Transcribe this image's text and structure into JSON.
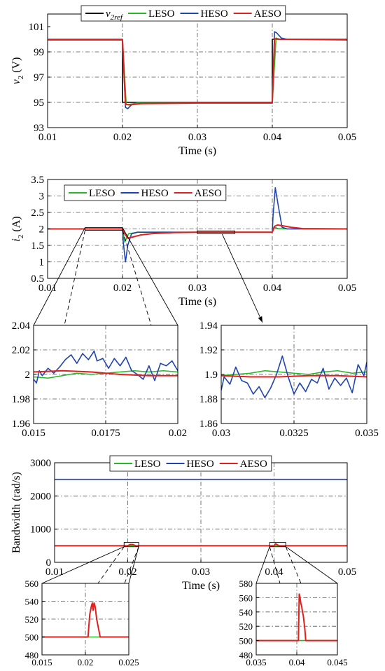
{
  "colors": {
    "ref": "#000000",
    "LESO": "#22b922",
    "HESO": "#2145b0",
    "AESO": "#e0201f"
  },
  "chart_data": [
    {
      "id": "voltage",
      "type": "line",
      "xlabel": "Time (s)",
      "ylabel_main": "v",
      "ylabel_sub": "2",
      "ylabel_unit": " (V)",
      "xlim": [
        0.01,
        0.05
      ],
      "ylim": [
        93,
        102
      ],
      "xticks": [
        "0.01",
        "0.02",
        "0.03",
        "0.04",
        "0.05"
      ],
      "xtick_values": [
        0.01,
        0.02,
        0.03,
        0.04,
        0.05
      ],
      "yticks": [
        "93",
        "95",
        "97",
        "99",
        "101"
      ],
      "ytick_values": [
        93,
        95,
        97,
        99,
        101
      ],
      "legend": {
        "position": "top",
        "entries": [
          {
            "key": "ref",
            "main": "v",
            "sub": "2ref"
          },
          {
            "key": "LESO",
            "label": "LESO"
          },
          {
            "key": "HESO",
            "label": "HESO"
          },
          {
            "key": "AESO",
            "label": "AESO"
          }
        ]
      },
      "series": [
        {
          "name": "v2ref",
          "key": "ref",
          "x": [
            0.01,
            0.02,
            0.02,
            0.04,
            0.04,
            0.05
          ],
          "y": [
            100,
            100,
            95,
            95,
            100,
            100
          ]
        },
        {
          "name": "HESO",
          "key": "HESO",
          "x": [
            0.01,
            0.0199,
            0.02,
            0.0204,
            0.0207,
            0.0212,
            0.022,
            0.03,
            0.0399,
            0.04,
            0.0403,
            0.0406,
            0.0412,
            0.042,
            0.05
          ],
          "y": [
            100,
            100,
            99.9,
            94.6,
            94.5,
            94.8,
            95,
            95,
            95,
            95.1,
            100.6,
            100.5,
            100.1,
            100,
            100
          ]
        },
        {
          "name": "LESO",
          "key": "LESO",
          "x": [
            0.01,
            0.02,
            0.0205,
            0.021,
            0.022,
            0.04,
            0.0405,
            0.041,
            0.05
          ],
          "y": [
            100,
            100,
            94.8,
            94.85,
            94.95,
            94.95,
            100.1,
            100,
            100
          ]
        },
        {
          "name": "AESO",
          "key": "AESO",
          "x": [
            0.01,
            0.02,
            0.0204,
            0.021,
            0.0225,
            0.03,
            0.04,
            0.0403,
            0.041,
            0.0425,
            0.05
          ],
          "y": [
            99.95,
            99.95,
            94.85,
            94.8,
            94.9,
            94.95,
            94.95,
            100.05,
            100.0,
            100.0,
            99.95
          ]
        }
      ]
    },
    {
      "id": "current",
      "type": "line",
      "xlabel": "Time (s)",
      "ylabel_main": "i",
      "ylabel_sub": "2",
      "ylabel_unit": " (A)",
      "xlim": [
        0.01,
        0.05
      ],
      "ylim": [
        0.5,
        3.5
      ],
      "xticks": [
        "0.01",
        "0.02",
        "0.03",
        "0.04",
        "0.05"
      ],
      "xtick_values": [
        0.01,
        0.02,
        0.03,
        0.04,
        0.05
      ],
      "yticks": [
        "0.5",
        "1",
        "1.5",
        "2",
        "2.5",
        "3",
        "3.5"
      ],
      "ytick_values": [
        0.5,
        1,
        1.5,
        2,
        2.5,
        3,
        3.5
      ],
      "legend": {
        "position": "top-left",
        "entries": [
          {
            "key": "LESO",
            "label": "LESO"
          },
          {
            "key": "HESO",
            "label": "HESO"
          },
          {
            "key": "AESO",
            "label": "AESO"
          }
        ]
      },
      "series": [
        {
          "name": "LESO",
          "key": "LESO",
          "x": [
            0.01,
            0.02,
            0.0203,
            0.0208,
            0.022,
            0.025,
            0.04,
            0.0402,
            0.0408,
            0.042,
            0.05
          ],
          "y": [
            2.0,
            2.0,
            1.6,
            1.85,
            1.9,
            1.9,
            1.9,
            2.05,
            2.01,
            2.0,
            2.0
          ]
        },
        {
          "name": "HESO",
          "key": "HESO",
          "x": [
            0.01,
            0.02,
            0.0201,
            0.0204,
            0.0207,
            0.0212,
            0.022,
            0.03,
            0.04,
            0.0401,
            0.0404,
            0.0408,
            0.0413,
            0.042,
            0.05
          ],
          "y": [
            2.0,
            2.0,
            1.6,
            1.0,
            1.5,
            1.85,
            1.9,
            1.9,
            1.9,
            2.4,
            3.25,
            2.7,
            2.05,
            2.0,
            2.0
          ]
        },
        {
          "name": "AESO",
          "key": "AESO",
          "x": [
            0.01,
            0.02,
            0.0203,
            0.0207,
            0.0213,
            0.0225,
            0.024,
            0.027,
            0.03,
            0.04,
            0.0403,
            0.0407,
            0.0415,
            0.0425,
            0.044,
            0.05
          ],
          "y": [
            2.0,
            2.0,
            1.85,
            1.72,
            1.75,
            1.82,
            1.86,
            1.89,
            1.9,
            1.9,
            2.08,
            2.12,
            2.09,
            2.05,
            2.01,
            2.0
          ]
        }
      ]
    },
    {
      "id": "current-zoom-1",
      "type": "line",
      "xlim": [
        0.015,
        0.02
      ],
      "ylim": [
        1.96,
        2.04
      ],
      "xticks": [
        "0.015",
        "0.0175",
        "0.02"
      ],
      "xtick_values": [
        0.015,
        0.0175,
        0.02
      ],
      "yticks": [
        "1.96",
        "1.98",
        "2",
        "2.02",
        "2.04"
      ],
      "ytick_values": [
        1.96,
        1.98,
        2.0,
        2.02,
        2.04
      ],
      "series": [
        {
          "name": "LESO",
          "key": "LESO",
          "x": [
            0.015,
            0.0155,
            0.016,
            0.0165,
            0.017,
            0.0175,
            0.018,
            0.0185,
            0.019,
            0.0195,
            0.02
          ],
          "y": [
            1.998,
            1.997,
            1.999,
            2.001,
            2.0,
            2.001,
            2.002,
            2.003,
            2.002,
            2.003,
            2.002
          ]
        },
        {
          "name": "HESO",
          "key": "HESO",
          "x": [
            0.015,
            0.0151,
            0.0152,
            0.0153,
            0.0155,
            0.0157,
            0.0159,
            0.0161,
            0.0163,
            0.0165,
            0.0167,
            0.0169,
            0.0171,
            0.0172,
            0.0174,
            0.0176,
            0.0178,
            0.018,
            0.0182,
            0.0184,
            0.0186,
            0.0188,
            0.019,
            0.0192,
            0.0194,
            0.0196,
            0.0198,
            0.02
          ],
          "y": [
            1.996,
            1.993,
            2.003,
            1.999,
            2.005,
            2.001,
            2.006,
            2.012,
            2.016,
            2.009,
            2.017,
            2.012,
            2.019,
            2.011,
            2.013,
            2.005,
            2.013,
            2.007,
            2.014,
            2.003,
            2.0,
            1.996,
            2.007,
            1.995,
            2.009,
            2.007,
            2.011,
            2.003
          ]
        },
        {
          "name": "AESO",
          "key": "AESO",
          "x": [
            0.015,
            0.016,
            0.017,
            0.0175,
            0.018,
            0.019,
            0.02
          ],
          "y": [
            2.002,
            2.003,
            2.002,
            2.001,
            2.0,
            1.999,
            1.999
          ]
        }
      ]
    },
    {
      "id": "current-zoom-2",
      "type": "line",
      "xlim": [
        0.03,
        0.035
      ],
      "ylim": [
        1.86,
        1.94
      ],
      "xticks": [
        "0.03",
        "0.0325",
        "0.035"
      ],
      "xtick_values": [
        0.03,
        0.0325,
        0.035
      ],
      "yticks": [
        "1.86",
        "1.88",
        "1.9",
        "1.92",
        "1.94"
      ],
      "ytick_values": [
        1.86,
        1.88,
        1.9,
        1.92,
        1.94
      ],
      "series": [
        {
          "name": "LESO",
          "key": "LESO",
          "x": [
            0.03,
            0.0305,
            0.031,
            0.0315,
            0.032,
            0.0325,
            0.033,
            0.0335,
            0.034,
            0.0345,
            0.035
          ],
          "y": [
            1.899,
            1.9,
            1.901,
            1.903,
            1.902,
            1.901,
            1.9,
            1.902,
            1.903,
            1.901,
            1.902
          ]
        },
        {
          "name": "HESO",
          "key": "HESO",
          "x": [
            0.03,
            0.0301,
            0.0303,
            0.0305,
            0.0307,
            0.0309,
            0.0311,
            0.0313,
            0.0315,
            0.0317,
            0.0319,
            0.0321,
            0.0323,
            0.0325,
            0.0327,
            0.0329,
            0.0331,
            0.0333,
            0.0335,
            0.0337,
            0.0339,
            0.0341,
            0.0343,
            0.0345,
            0.0347,
            0.0349,
            0.035
          ],
          "y": [
            1.887,
            1.898,
            1.892,
            1.906,
            1.895,
            1.893,
            1.884,
            1.89,
            1.881,
            1.889,
            1.9,
            1.915,
            1.898,
            1.884,
            1.893,
            1.886,
            1.896,
            1.893,
            1.905,
            1.888,
            1.897,
            1.891,
            1.897,
            1.885,
            1.908,
            1.899,
            1.91
          ]
        },
        {
          "name": "AESO",
          "key": "AESO",
          "x": [
            0.03,
            0.031,
            0.032,
            0.033,
            0.034,
            0.035
          ],
          "y": [
            1.899,
            1.898,
            1.898,
            1.899,
            1.899,
            1.898
          ]
        }
      ]
    },
    {
      "id": "bandwidth",
      "type": "line",
      "xlabel": "Time (s)",
      "ylabel": "Bandwidth (rad/s)",
      "xlim": [
        0.01,
        0.05
      ],
      "ylim": [
        0,
        3000
      ],
      "xticks": [
        "0.01",
        "0.02",
        "0.03",
        "0.04",
        "0.05"
      ],
      "xtick_values": [
        0.01,
        0.02,
        0.03,
        0.04,
        0.05
      ],
      "yticks": [
        "0",
        "1000",
        "2000",
        "3000"
      ],
      "ytick_values": [
        0,
        1000,
        2000,
        3000
      ],
      "legend": {
        "position": "top",
        "entries": [
          {
            "key": "LESO",
            "label": "LESO"
          },
          {
            "key": "HESO",
            "label": "HESO"
          },
          {
            "key": "AESO",
            "label": "AESO"
          }
        ]
      },
      "series": [
        {
          "name": "LESO",
          "key": "LESO",
          "x": [
            0.01,
            0.05
          ],
          "y": [
            500,
            500
          ]
        },
        {
          "name": "HESO",
          "key": "HESO",
          "x": [
            0.01,
            0.05
          ],
          "y": [
            2500,
            2500
          ]
        },
        {
          "name": "AESO",
          "key": "AESO",
          "x": [
            0.01,
            0.02,
            0.0203,
            0.0207,
            0.0211,
            0.03,
            0.04,
            0.0402,
            0.0407,
            0.05
          ],
          "y": [
            500,
            500,
            535,
            535,
            500,
            500,
            500,
            560,
            500,
            500
          ]
        }
      ]
    },
    {
      "id": "bandwidth-zoom-1",
      "type": "line",
      "xlim": [
        0.015,
        0.025
      ],
      "ylim": [
        480,
        560
      ],
      "xticks": [
        "0.015",
        "0.02",
        "0.025"
      ],
      "xtick_values": [
        0.015,
        0.02,
        0.025
      ],
      "yticks": [
        "480",
        "500",
        "520",
        "540",
        "560"
      ],
      "ytick_values": [
        480,
        500,
        520,
        540,
        560
      ],
      "series": [
        {
          "name": "LESO",
          "key": "LESO",
          "x": [
            0.015,
            0.025
          ],
          "y": [
            500,
            500
          ]
        },
        {
          "name": "AESO",
          "key": "AESO",
          "x": [
            0.015,
            0.0203,
            0.0205,
            0.0207,
            0.0208,
            0.0209,
            0.021,
            0.0211,
            0.0212,
            0.0213,
            0.0215,
            0.0217,
            0.025
          ],
          "y": [
            500,
            500,
            525,
            535,
            538,
            530,
            538,
            535,
            528,
            520,
            510,
            500,
            500
          ]
        }
      ]
    },
    {
      "id": "bandwidth-zoom-2",
      "type": "line",
      "xlim": [
        0.035,
        0.045
      ],
      "ylim": [
        480,
        580
      ],
      "xticks": [
        "0.035",
        "0.04",
        "0.045"
      ],
      "xtick_values": [
        0.035,
        0.04,
        0.045
      ],
      "yticks": [
        "480",
        "500",
        "520",
        "540",
        "560",
        "580"
      ],
      "ytick_values": [
        480,
        500,
        520,
        540,
        560,
        580
      ],
      "series": [
        {
          "name": "LESO",
          "key": "LESO",
          "x": [
            0.035,
            0.045
          ],
          "y": [
            500,
            500
          ]
        },
        {
          "name": "AESO",
          "key": "AESO",
          "x": [
            0.035,
            0.0402,
            0.0403,
            0.0404,
            0.0405,
            0.0406,
            0.0407,
            0.0408,
            0.0409,
            0.041,
            0.0411,
            0.045
          ],
          "y": [
            500,
            500,
            565,
            560,
            552,
            548,
            540,
            535,
            525,
            515,
            500,
            500
          ]
        }
      ]
    }
  ]
}
